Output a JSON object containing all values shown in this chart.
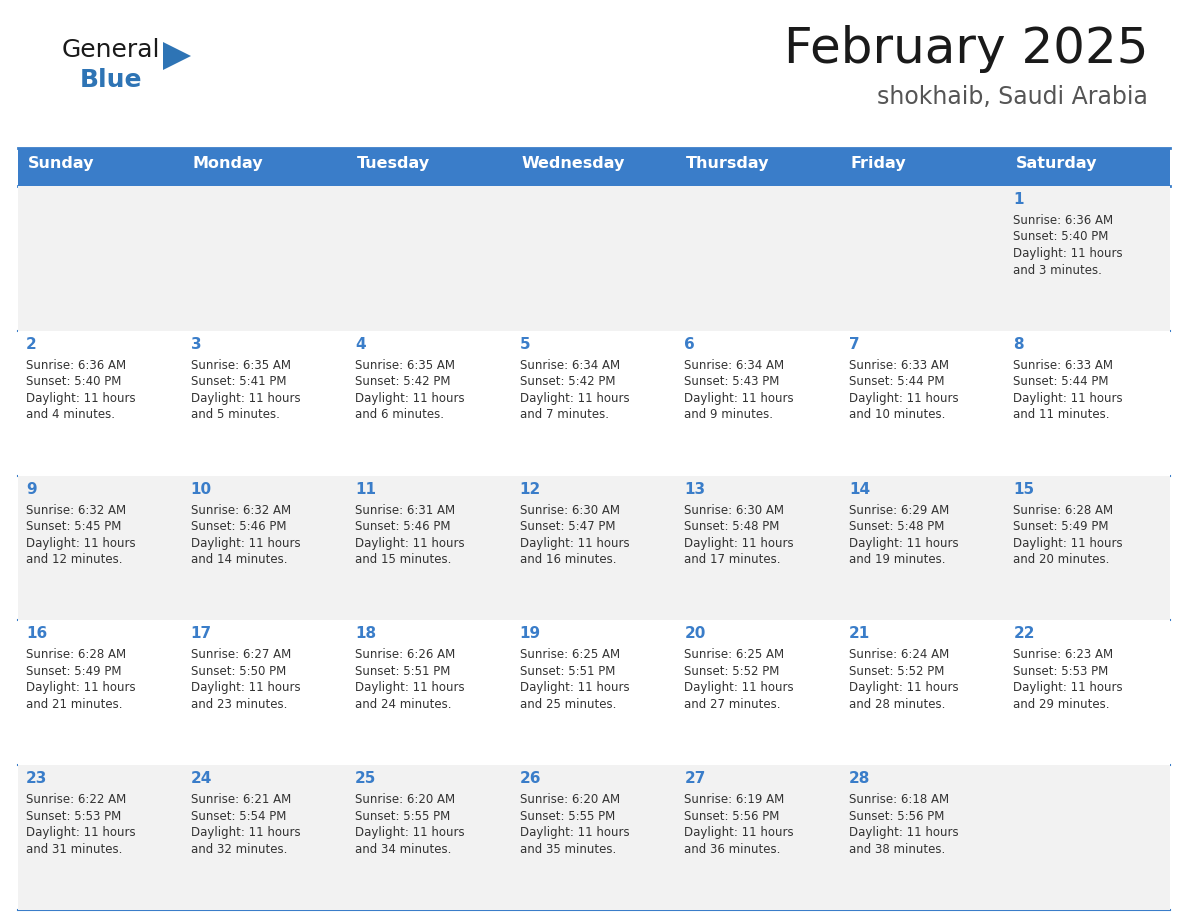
{
  "title": "February 2025",
  "subtitle": "shokhaib, Saudi Arabia",
  "header_bg": "#3A7DC9",
  "header_text_color": "#FFFFFF",
  "header_days": [
    "Sunday",
    "Monday",
    "Tuesday",
    "Wednesday",
    "Thursday",
    "Friday",
    "Saturday"
  ],
  "cell_bg_odd": "#F2F2F2",
  "cell_bg_even": "#FFFFFF",
  "day_number_color": "#3A7DC9",
  "text_color": "#333333",
  "border_color": "#3A7DC9",
  "title_color": "#1a1a1a",
  "subtitle_color": "#555555",
  "logo_general_color": "#1a1a1a",
  "logo_blue_color": "#2E74B5",
  "days": [
    {
      "day": 1,
      "col": 6,
      "row": 0,
      "sunrise": "6:36 AM",
      "sunset": "5:40 PM",
      "daylight": "11 hours and 3 minutes."
    },
    {
      "day": 2,
      "col": 0,
      "row": 1,
      "sunrise": "6:36 AM",
      "sunset": "5:40 PM",
      "daylight": "11 hours and 4 minutes."
    },
    {
      "day": 3,
      "col": 1,
      "row": 1,
      "sunrise": "6:35 AM",
      "sunset": "5:41 PM",
      "daylight": "11 hours and 5 minutes."
    },
    {
      "day": 4,
      "col": 2,
      "row": 1,
      "sunrise": "6:35 AM",
      "sunset": "5:42 PM",
      "daylight": "11 hours and 6 minutes."
    },
    {
      "day": 5,
      "col": 3,
      "row": 1,
      "sunrise": "6:34 AM",
      "sunset": "5:42 PM",
      "daylight": "11 hours and 7 minutes."
    },
    {
      "day": 6,
      "col": 4,
      "row": 1,
      "sunrise": "6:34 AM",
      "sunset": "5:43 PM",
      "daylight": "11 hours and 9 minutes."
    },
    {
      "day": 7,
      "col": 5,
      "row": 1,
      "sunrise": "6:33 AM",
      "sunset": "5:44 PM",
      "daylight": "11 hours and 10 minutes."
    },
    {
      "day": 8,
      "col": 6,
      "row": 1,
      "sunrise": "6:33 AM",
      "sunset": "5:44 PM",
      "daylight": "11 hours and 11 minutes."
    },
    {
      "day": 9,
      "col": 0,
      "row": 2,
      "sunrise": "6:32 AM",
      "sunset": "5:45 PM",
      "daylight": "11 hours and 12 minutes."
    },
    {
      "day": 10,
      "col": 1,
      "row": 2,
      "sunrise": "6:32 AM",
      "sunset": "5:46 PM",
      "daylight": "11 hours and 14 minutes."
    },
    {
      "day": 11,
      "col": 2,
      "row": 2,
      "sunrise": "6:31 AM",
      "sunset": "5:46 PM",
      "daylight": "11 hours and 15 minutes."
    },
    {
      "day": 12,
      "col": 3,
      "row": 2,
      "sunrise": "6:30 AM",
      "sunset": "5:47 PM",
      "daylight": "11 hours and 16 minutes."
    },
    {
      "day": 13,
      "col": 4,
      "row": 2,
      "sunrise": "6:30 AM",
      "sunset": "5:48 PM",
      "daylight": "11 hours and 17 minutes."
    },
    {
      "day": 14,
      "col": 5,
      "row": 2,
      "sunrise": "6:29 AM",
      "sunset": "5:48 PM",
      "daylight": "11 hours and 19 minutes."
    },
    {
      "day": 15,
      "col": 6,
      "row": 2,
      "sunrise": "6:28 AM",
      "sunset": "5:49 PM",
      "daylight": "11 hours and 20 minutes."
    },
    {
      "day": 16,
      "col": 0,
      "row": 3,
      "sunrise": "6:28 AM",
      "sunset": "5:49 PM",
      "daylight": "11 hours and 21 minutes."
    },
    {
      "day": 17,
      "col": 1,
      "row": 3,
      "sunrise": "6:27 AM",
      "sunset": "5:50 PM",
      "daylight": "11 hours and 23 minutes."
    },
    {
      "day": 18,
      "col": 2,
      "row": 3,
      "sunrise": "6:26 AM",
      "sunset": "5:51 PM",
      "daylight": "11 hours and 24 minutes."
    },
    {
      "day": 19,
      "col": 3,
      "row": 3,
      "sunrise": "6:25 AM",
      "sunset": "5:51 PM",
      "daylight": "11 hours and 25 minutes."
    },
    {
      "day": 20,
      "col": 4,
      "row": 3,
      "sunrise": "6:25 AM",
      "sunset": "5:52 PM",
      "daylight": "11 hours and 27 minutes."
    },
    {
      "day": 21,
      "col": 5,
      "row": 3,
      "sunrise": "6:24 AM",
      "sunset": "5:52 PM",
      "daylight": "11 hours and 28 minutes."
    },
    {
      "day": 22,
      "col": 6,
      "row": 3,
      "sunrise": "6:23 AM",
      "sunset": "5:53 PM",
      "daylight": "11 hours and 29 minutes."
    },
    {
      "day": 23,
      "col": 0,
      "row": 4,
      "sunrise": "6:22 AM",
      "sunset": "5:53 PM",
      "daylight": "11 hours and 31 minutes."
    },
    {
      "day": 24,
      "col": 1,
      "row": 4,
      "sunrise": "6:21 AM",
      "sunset": "5:54 PM",
      "daylight": "11 hours and 32 minutes."
    },
    {
      "day": 25,
      "col": 2,
      "row": 4,
      "sunrise": "6:20 AM",
      "sunset": "5:55 PM",
      "daylight": "11 hours and 34 minutes."
    },
    {
      "day": 26,
      "col": 3,
      "row": 4,
      "sunrise": "6:20 AM",
      "sunset": "5:55 PM",
      "daylight": "11 hours and 35 minutes."
    },
    {
      "day": 27,
      "col": 4,
      "row": 4,
      "sunrise": "6:19 AM",
      "sunset": "5:56 PM",
      "daylight": "11 hours and 36 minutes."
    },
    {
      "day": 28,
      "col": 5,
      "row": 4,
      "sunrise": "6:18 AM",
      "sunset": "5:56 PM",
      "daylight": "11 hours and 38 minutes."
    }
  ]
}
